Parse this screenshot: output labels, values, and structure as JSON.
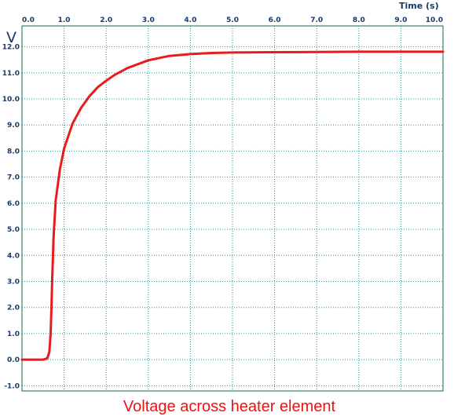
{
  "chart_data": {
    "type": "line",
    "title": "Voltage across heater element",
    "xlabel": "Time  (s)",
    "ylabel": "V",
    "xlim": [
      0,
      10
    ],
    "ylim": [
      -1.2,
      12.8
    ],
    "x_ticks": [
      "0.0",
      "1.0",
      "2.0",
      "3.0",
      "4.0",
      "5.0",
      "6.0",
      "7.0",
      "8.0",
      "9.0",
      "10.0"
    ],
    "y_ticks": [
      "12.0",
      "11.0",
      "10.0",
      "9.0",
      "8.0",
      "7.0",
      "6.0",
      "5.0",
      "4.0",
      "3.0",
      "2.0",
      "1.0",
      "0.0",
      "-1.0"
    ],
    "grid": true,
    "series": [
      {
        "color": "#e81c1c",
        "x": [
          0,
          0.5,
          0.6,
          0.65,
          0.68,
          0.7,
          0.72,
          0.75,
          0.8,
          0.9,
          1.0,
          1.2,
          1.4,
          1.6,
          1.8,
          2.0,
          2.2,
          2.5,
          3.0,
          3.5,
          4.0,
          4.5,
          5.0,
          6.0,
          7.0,
          8.0,
          9.0,
          10.0
        ],
        "y": [
          0,
          0,
          0.05,
          0.3,
          1.0,
          2.0,
          3.2,
          4.7,
          6.1,
          7.3,
          8.1,
          9.05,
          9.65,
          10.1,
          10.45,
          10.7,
          10.92,
          11.18,
          11.48,
          11.65,
          11.72,
          11.76,
          11.78,
          11.79,
          11.8,
          11.81,
          11.81,
          11.81
        ]
      }
    ]
  },
  "colors": {
    "grid": "#1a9a9a",
    "frame": "#0d6b4a",
    "text": "#1a3a66",
    "caption": "#ee1111"
  }
}
